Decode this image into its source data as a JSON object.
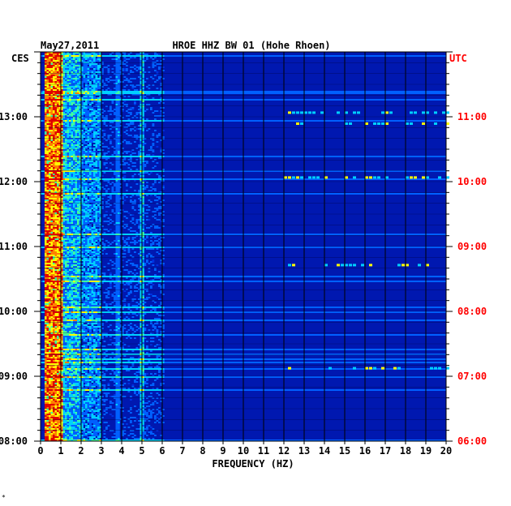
{
  "chart_data": {
    "type": "heatmap",
    "title": "HROE HHZ BW 01 (Hohe Rhoen)",
    "date": "May27,2011",
    "left_timezone": "CES",
    "right_timezone": "UTC",
    "xlabel": "FREQUENCY (HZ)",
    "xlim": [
      0,
      20
    ],
    "x_ticks": [
      "0",
      "1",
      "2",
      "3",
      "4",
      "5",
      "6",
      "7",
      "8",
      "9",
      "10",
      "11",
      "12",
      "13",
      "14",
      "15",
      "16",
      "17",
      "18",
      "19",
      "20"
    ],
    "y_ticks_left": [
      "08:00",
      "09:00",
      "10:00",
      "11:00",
      "12:00",
      "13:00"
    ],
    "y_ticks_right": [
      "06:00",
      "07:00",
      "08:00",
      "09:00",
      "10:00",
      "11:00"
    ],
    "time_range_local_hours": [
      8.0,
      14.0
    ],
    "colors": {
      "background": "#0018b0",
      "low": "#0030e0",
      "mid": "#00d0ff",
      "high": "#ffff00",
      "peak": "#e00000",
      "grid": "#000000",
      "right_axis_text": "#ff0000"
    },
    "features": [
      {
        "name": "microseism band",
        "freq_range": [
          0.2,
          1.0
        ],
        "intensity": "very high"
      },
      {
        "name": "secondary band",
        "freq_range": [
          1.0,
          3.0
        ],
        "intensity": "medium"
      },
      {
        "name": "line 3.8 Hz",
        "freq": 3.8,
        "intensity": "low"
      },
      {
        "name": "line 4.9 Hz",
        "freq": 4.9,
        "intensity": "medium"
      },
      {
        "name": "high-frequency noise",
        "freq_range": [
          15.0,
          20.0
        ],
        "intensity": "low"
      }
    ]
  },
  "corner_mark": "*"
}
